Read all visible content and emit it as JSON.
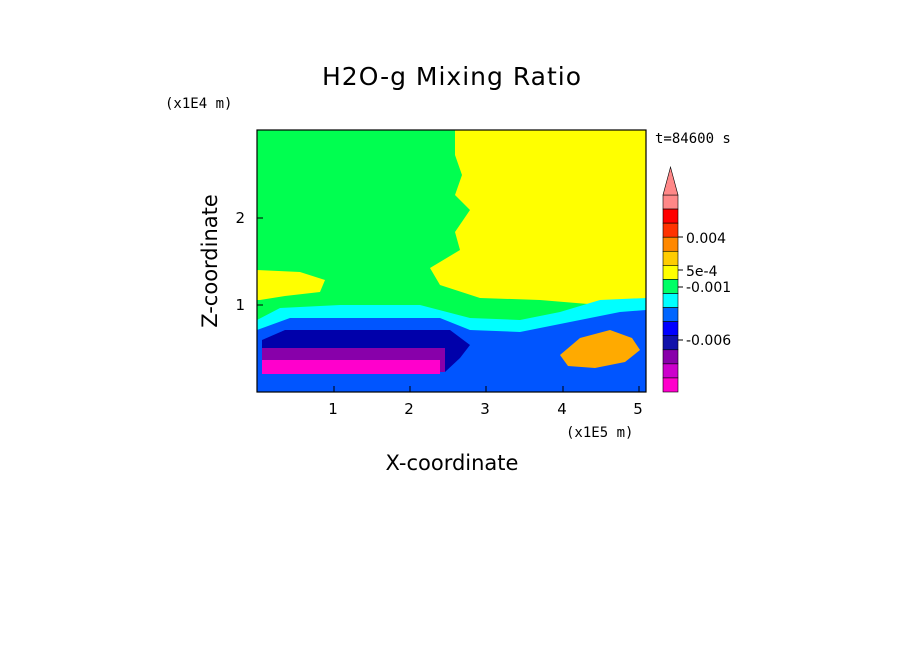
{
  "chart_data": {
    "type": "heatmap",
    "title": "H2O-g Mixing Ratio",
    "xlabel": "X-coordinate",
    "ylabel": "Z-coordinate",
    "x_unit_label": "(x1E5 m)",
    "y_unit_label": "(x1E4 m)",
    "time_label": "t=84600 s",
    "xlim": [
      0,
      5.1
    ],
    "ylim": [
      0,
      3
    ],
    "x_ticks": [
      "1",
      "2",
      "3",
      "4",
      "5"
    ],
    "y_ticks": [
      "1",
      "2"
    ],
    "colorbar": {
      "colors": [
        "#ff00cc",
        "#cc00cc",
        "#8800aa",
        "#1111aa",
        "#0000ff",
        "#0066ff",
        "#00ffff",
        "#00ff66",
        "#ffff00",
        "#ffcc00",
        "#ff8800",
        "#ff3300",
        "#ff0000",
        "#ff8888"
      ],
      "tick_labels": [
        "0.004",
        "5e-4",
        "-0.001",
        "-0.006"
      ],
      "extend": "max"
    },
    "regions": [
      {
        "name": "background",
        "color": "#00ff50"
      },
      {
        "name": "upper-dry",
        "color": "#ffff00"
      },
      {
        "name": "cyan-layer",
        "color": "#00ffff"
      },
      {
        "name": "blue-layer",
        "color": "#0055ff"
      },
      {
        "name": "navy-layer",
        "color": "#0000aa"
      },
      {
        "name": "purple-layer",
        "color": "#8800aa"
      },
      {
        "name": "magenta-layer",
        "color": "#ff00cc"
      },
      {
        "name": "orange-patch",
        "color": "#ffaa00"
      }
    ]
  }
}
